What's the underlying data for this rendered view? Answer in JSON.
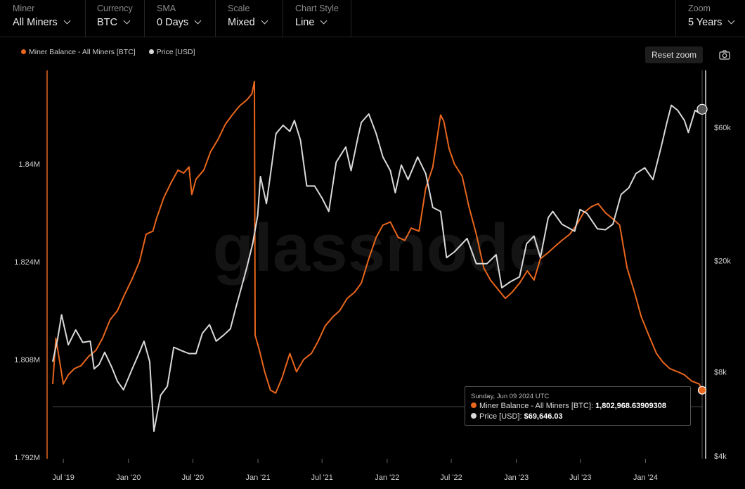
{
  "toolbar": {
    "miner": {
      "label": "Miner",
      "value": "All Miners"
    },
    "currency": {
      "label": "Currency",
      "value": "BTC"
    },
    "sma": {
      "label": "SMA",
      "value": "0 Days"
    },
    "scale": {
      "label": "Scale",
      "value": "Mixed"
    },
    "chart_style": {
      "label": "Chart Style",
      "value": "Line"
    },
    "zoom": {
      "label": "Zoom",
      "value": "5 Years"
    }
  },
  "reset_zoom": "Reset zoom",
  "watermark": "glassnode",
  "colors": {
    "balance": "#e8661c",
    "price": "#d9d9d9",
    "background": "#000000"
  },
  "tooltip": {
    "date": "Sunday, Jun 09 2024 UTC",
    "balance_label": "Miner Balance - All Miners [BTC]:",
    "balance_value": "1,802,968.63909308",
    "price_label": "Price [USD]:",
    "price_value": "$69,646.03"
  },
  "chart_data": {
    "type": "line",
    "legend": [
      "Miner Balance - All Miners [BTC]",
      "Price [USD]"
    ],
    "legend_position": "top-left",
    "grid": false,
    "x_ticks": [
      "Jul '19",
      "Jan '20",
      "Jul '20",
      "Jan '21",
      "Jul '21",
      "Jan '22",
      "Jul '22",
      "Jan '23",
      "Jul '23",
      "Jan '24"
    ],
    "y_left": {
      "ticks": [
        "1.84M",
        "1.824M",
        "1.808M",
        "1.792M"
      ],
      "range": [
        1792000,
        1858000
      ],
      "scale": "linear"
    },
    "y_right": {
      "ticks": [
        "$60k",
        "$20k",
        "$8k",
        "$4k"
      ],
      "range": [
        4000,
        78000
      ],
      "scale": "log"
    },
    "series": [
      {
        "name": "Miner Balance - All Miners [BTC]",
        "axis": "left",
        "color": "#e8661c",
        "x": [
          "2019-06-01",
          "2019-06-10",
          "2019-07-01",
          "2019-07-15",
          "2019-08-01",
          "2019-08-20",
          "2019-09-10",
          "2019-10-01",
          "2019-10-20",
          "2019-11-10",
          "2019-12-01",
          "2019-12-20",
          "2020-01-10",
          "2020-02-01",
          "2020-02-20",
          "2020-03-10",
          "2020-03-20",
          "2020-04-10",
          "2020-05-01",
          "2020-05-20",
          "2020-06-05",
          "2020-06-20",
          "2020-06-28",
          "2020-07-10",
          "2020-08-01",
          "2020-08-20",
          "2020-09-10",
          "2020-10-01",
          "2020-10-20",
          "2020-11-10",
          "2020-12-01",
          "2020-12-15",
          "2020-12-22",
          "2020-12-24",
          "2021-01-05",
          "2021-01-20",
          "2021-02-05",
          "2021-02-20",
          "2021-03-10",
          "2021-04-01",
          "2021-04-20",
          "2021-05-10",
          "2021-06-01",
          "2021-06-20",
          "2021-07-10",
          "2021-08-01",
          "2021-08-20",
          "2021-09-10",
          "2021-10-01",
          "2021-10-20",
          "2021-11-10",
          "2021-12-01",
          "2021-12-20",
          "2022-01-10",
          "2022-02-01",
          "2022-02-20",
          "2022-03-10",
          "2022-04-01",
          "2022-04-20",
          "2022-05-10",
          "2022-06-01",
          "2022-06-10",
          "2022-06-25",
          "2022-07-10",
          "2022-08-01",
          "2022-08-20",
          "2022-09-10",
          "2022-10-01",
          "2022-10-20",
          "2022-11-10",
          "2022-12-01",
          "2022-12-20",
          "2023-01-10",
          "2023-02-01",
          "2023-02-20",
          "2023-03-10",
          "2023-04-01",
          "2023-04-20",
          "2023-05-10",
          "2023-06-01",
          "2023-06-20",
          "2023-07-10",
          "2023-08-01",
          "2023-08-20",
          "2023-09-10",
          "2023-10-01",
          "2023-10-20",
          "2023-11-10",
          "2023-12-01",
          "2023-12-20",
          "2024-01-10",
          "2024-02-01",
          "2024-02-20",
          "2024-03-10",
          "2024-04-01",
          "2024-04-20",
          "2024-05-10",
          "2024-06-01",
          "2024-06-09"
        ],
        "values": [
          1804000,
          1811500,
          1804000,
          1805500,
          1806500,
          1807000,
          1808500,
          1809500,
          1811500,
          1814500,
          1816000,
          1818500,
          1821000,
          1824000,
          1828500,
          1829000,
          1831000,
          1834500,
          1837000,
          1839000,
          1838500,
          1839500,
          1835000,
          1837500,
          1839000,
          1842000,
          1844000,
          1846500,
          1848000,
          1849500,
          1850500,
          1851500,
          1853500,
          1812000,
          1809500,
          1806000,
          1803000,
          1802500,
          1805000,
          1809000,
          1806000,
          1808000,
          1809000,
          1811000,
          1813500,
          1815000,
          1816000,
          1818000,
          1819000,
          1820500,
          1824500,
          1828000,
          1830000,
          1830500,
          1828000,
          1827500,
          1829500,
          1829000,
          1836000,
          1839500,
          1848000,
          1847000,
          1842500,
          1840000,
          1838000,
          1833000,
          1828500,
          1823000,
          1821000,
          1819500,
          1818000,
          1819000,
          1820500,
          1822500,
          1821000,
          1824500,
          1825500,
          1826500,
          1827500,
          1828500,
          1830000,
          1832000,
          1833000,
          1833500,
          1832000,
          1831000,
          1830000,
          1823000,
          1819000,
          1815000,
          1812000,
          1809000,
          1807500,
          1806500,
          1806000,
          1805500,
          1804500,
          1804000,
          1802969
        ]
      },
      {
        "name": "Price [USD]",
        "axis": "right",
        "color": "#d9d9d9",
        "x": [
          "2019-06-01",
          "2019-06-15",
          "2019-06-26",
          "2019-07-15",
          "2019-08-05",
          "2019-08-25",
          "2019-09-15",
          "2019-09-26",
          "2019-10-10",
          "2019-10-26",
          "2019-11-15",
          "2019-12-01",
          "2019-12-18",
          "2020-01-10",
          "2020-02-01",
          "2020-02-14",
          "2020-03-01",
          "2020-03-13",
          "2020-04-01",
          "2020-04-20",
          "2020-05-08",
          "2020-06-01",
          "2020-06-20",
          "2020-07-10",
          "2020-07-28",
          "2020-08-17",
          "2020-09-05",
          "2020-09-25",
          "2020-10-15",
          "2020-10-30",
          "2020-11-15",
          "2020-12-01",
          "2020-12-17",
          "2020-12-31",
          "2021-01-08",
          "2021-01-25",
          "2021-02-10",
          "2021-02-21",
          "2021-03-13",
          "2021-04-01",
          "2021-04-14",
          "2021-05-01",
          "2021-05-19",
          "2021-06-10",
          "2021-07-01",
          "2021-07-20",
          "2021-08-10",
          "2021-09-06",
          "2021-09-21",
          "2021-10-10",
          "2021-10-20",
          "2021-11-10",
          "2021-12-01",
          "2021-12-20",
          "2022-01-10",
          "2022-01-24",
          "2022-02-10",
          "2022-03-01",
          "2022-03-28",
          "2022-04-20",
          "2022-05-10",
          "2022-06-01",
          "2022-06-18",
          "2022-07-10",
          "2022-08-15",
          "2022-09-10",
          "2022-10-10",
          "2022-11-05",
          "2022-11-21",
          "2022-12-15",
          "2023-01-10",
          "2023-01-30",
          "2023-02-20",
          "2023-03-10",
          "2023-04-01",
          "2023-04-14",
          "2023-05-10",
          "2023-06-15",
          "2023-06-30",
          "2023-07-20",
          "2023-08-18",
          "2023-09-10",
          "2023-10-01",
          "2023-10-24",
          "2023-11-15",
          "2023-12-05",
          "2023-12-30",
          "2024-01-22",
          "2024-02-15",
          "2024-03-01",
          "2024-03-14",
          "2024-04-01",
          "2024-04-20",
          "2024-05-01",
          "2024-05-20",
          "2024-06-01",
          "2024-06-09"
        ],
        "values": [
          8700,
          10500,
          12800,
          10000,
          11300,
          10200,
          10300,
          8200,
          8500,
          9400,
          8300,
          7400,
          6900,
          8100,
          9400,
          10300,
          8700,
          4900,
          6600,
          7100,
          9800,
          9500,
          9300,
          9300,
          11000,
          11800,
          10300,
          10800,
          11400,
          13500,
          16000,
          19000,
          23000,
          29000,
          40000,
          32000,
          45000,
          57000,
          61000,
          58000,
          63500,
          54000,
          37000,
          37000,
          33500,
          30000,
          45000,
          51000,
          42000,
          55000,
          62500,
          67000,
          57000,
          47000,
          42000,
          35000,
          44000,
          39000,
          47000,
          41000,
          31000,
          30000,
          20500,
          21500,
          24000,
          19500,
          19500,
          21000,
          16000,
          16800,
          17500,
          23000,
          24500,
          20500,
          28500,
          30000,
          27000,
          25500,
          30500,
          29500,
          26000,
          25800,
          27000,
          34500,
          36500,
          41000,
          43000,
          39000,
          51500,
          62000,
          72000,
          69000,
          63500,
          57500,
          69000,
          67500,
          69646
        ]
      }
    ]
  }
}
